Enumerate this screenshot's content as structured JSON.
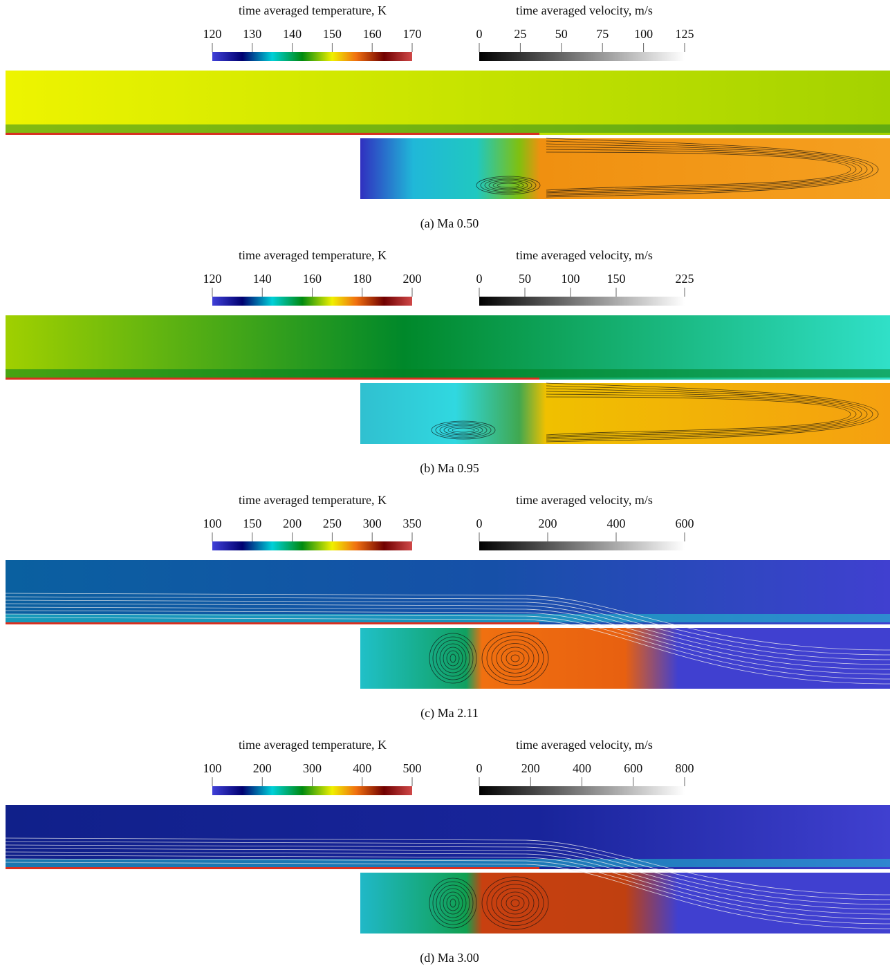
{
  "panels": [
    {
      "temperature": {
        "title": "time averaged temperature, K",
        "lim": [
          120,
          170
        ],
        "ticks": [
          120,
          130,
          140,
          150,
          160,
          170
        ]
      },
      "velocity": {
        "title": "time averaged velocity, m/s",
        "lim": [
          0,
          125
        ],
        "ticks": [
          0,
          25,
          50,
          75,
          100,
          125
        ]
      },
      "caption": "(a) Ma 0.50"
    },
    {
      "temperature": {
        "title": "time averaged temperature, K",
        "lim": [
          120,
          200
        ],
        "ticks": [
          120,
          140,
          160,
          180,
          200
        ]
      },
      "velocity": {
        "title": "time averaged velocity, m/s",
        "lim": [
          0,
          225
        ],
        "ticks": [
          0,
          50,
          100,
          150,
          225
        ]
      },
      "caption": "(b) Ma 0.95"
    },
    {
      "temperature": {
        "title": "time averaged temperature, K",
        "lim": [
          100,
          350
        ],
        "ticks": [
          100,
          150,
          200,
          250,
          300,
          350
        ]
      },
      "velocity": {
        "title": "time averaged velocity, m/s",
        "lim": [
          0,
          600
        ],
        "ticks": [
          0,
          200,
          400,
          600
        ]
      },
      "caption": "(c) Ma 2.11"
    },
    {
      "temperature": {
        "title": "time averaged temperature, K",
        "lim": [
          100,
          500
        ],
        "ticks": [
          100,
          200,
          300,
          400,
          500
        ]
      },
      "velocity": {
        "title": "time averaged velocity, m/s",
        "lim": [
          0,
          800
        ],
        "ticks": [
          0,
          200,
          400,
          600,
          800
        ]
      },
      "caption": "(d) Ma 3.00"
    }
  ]
}
